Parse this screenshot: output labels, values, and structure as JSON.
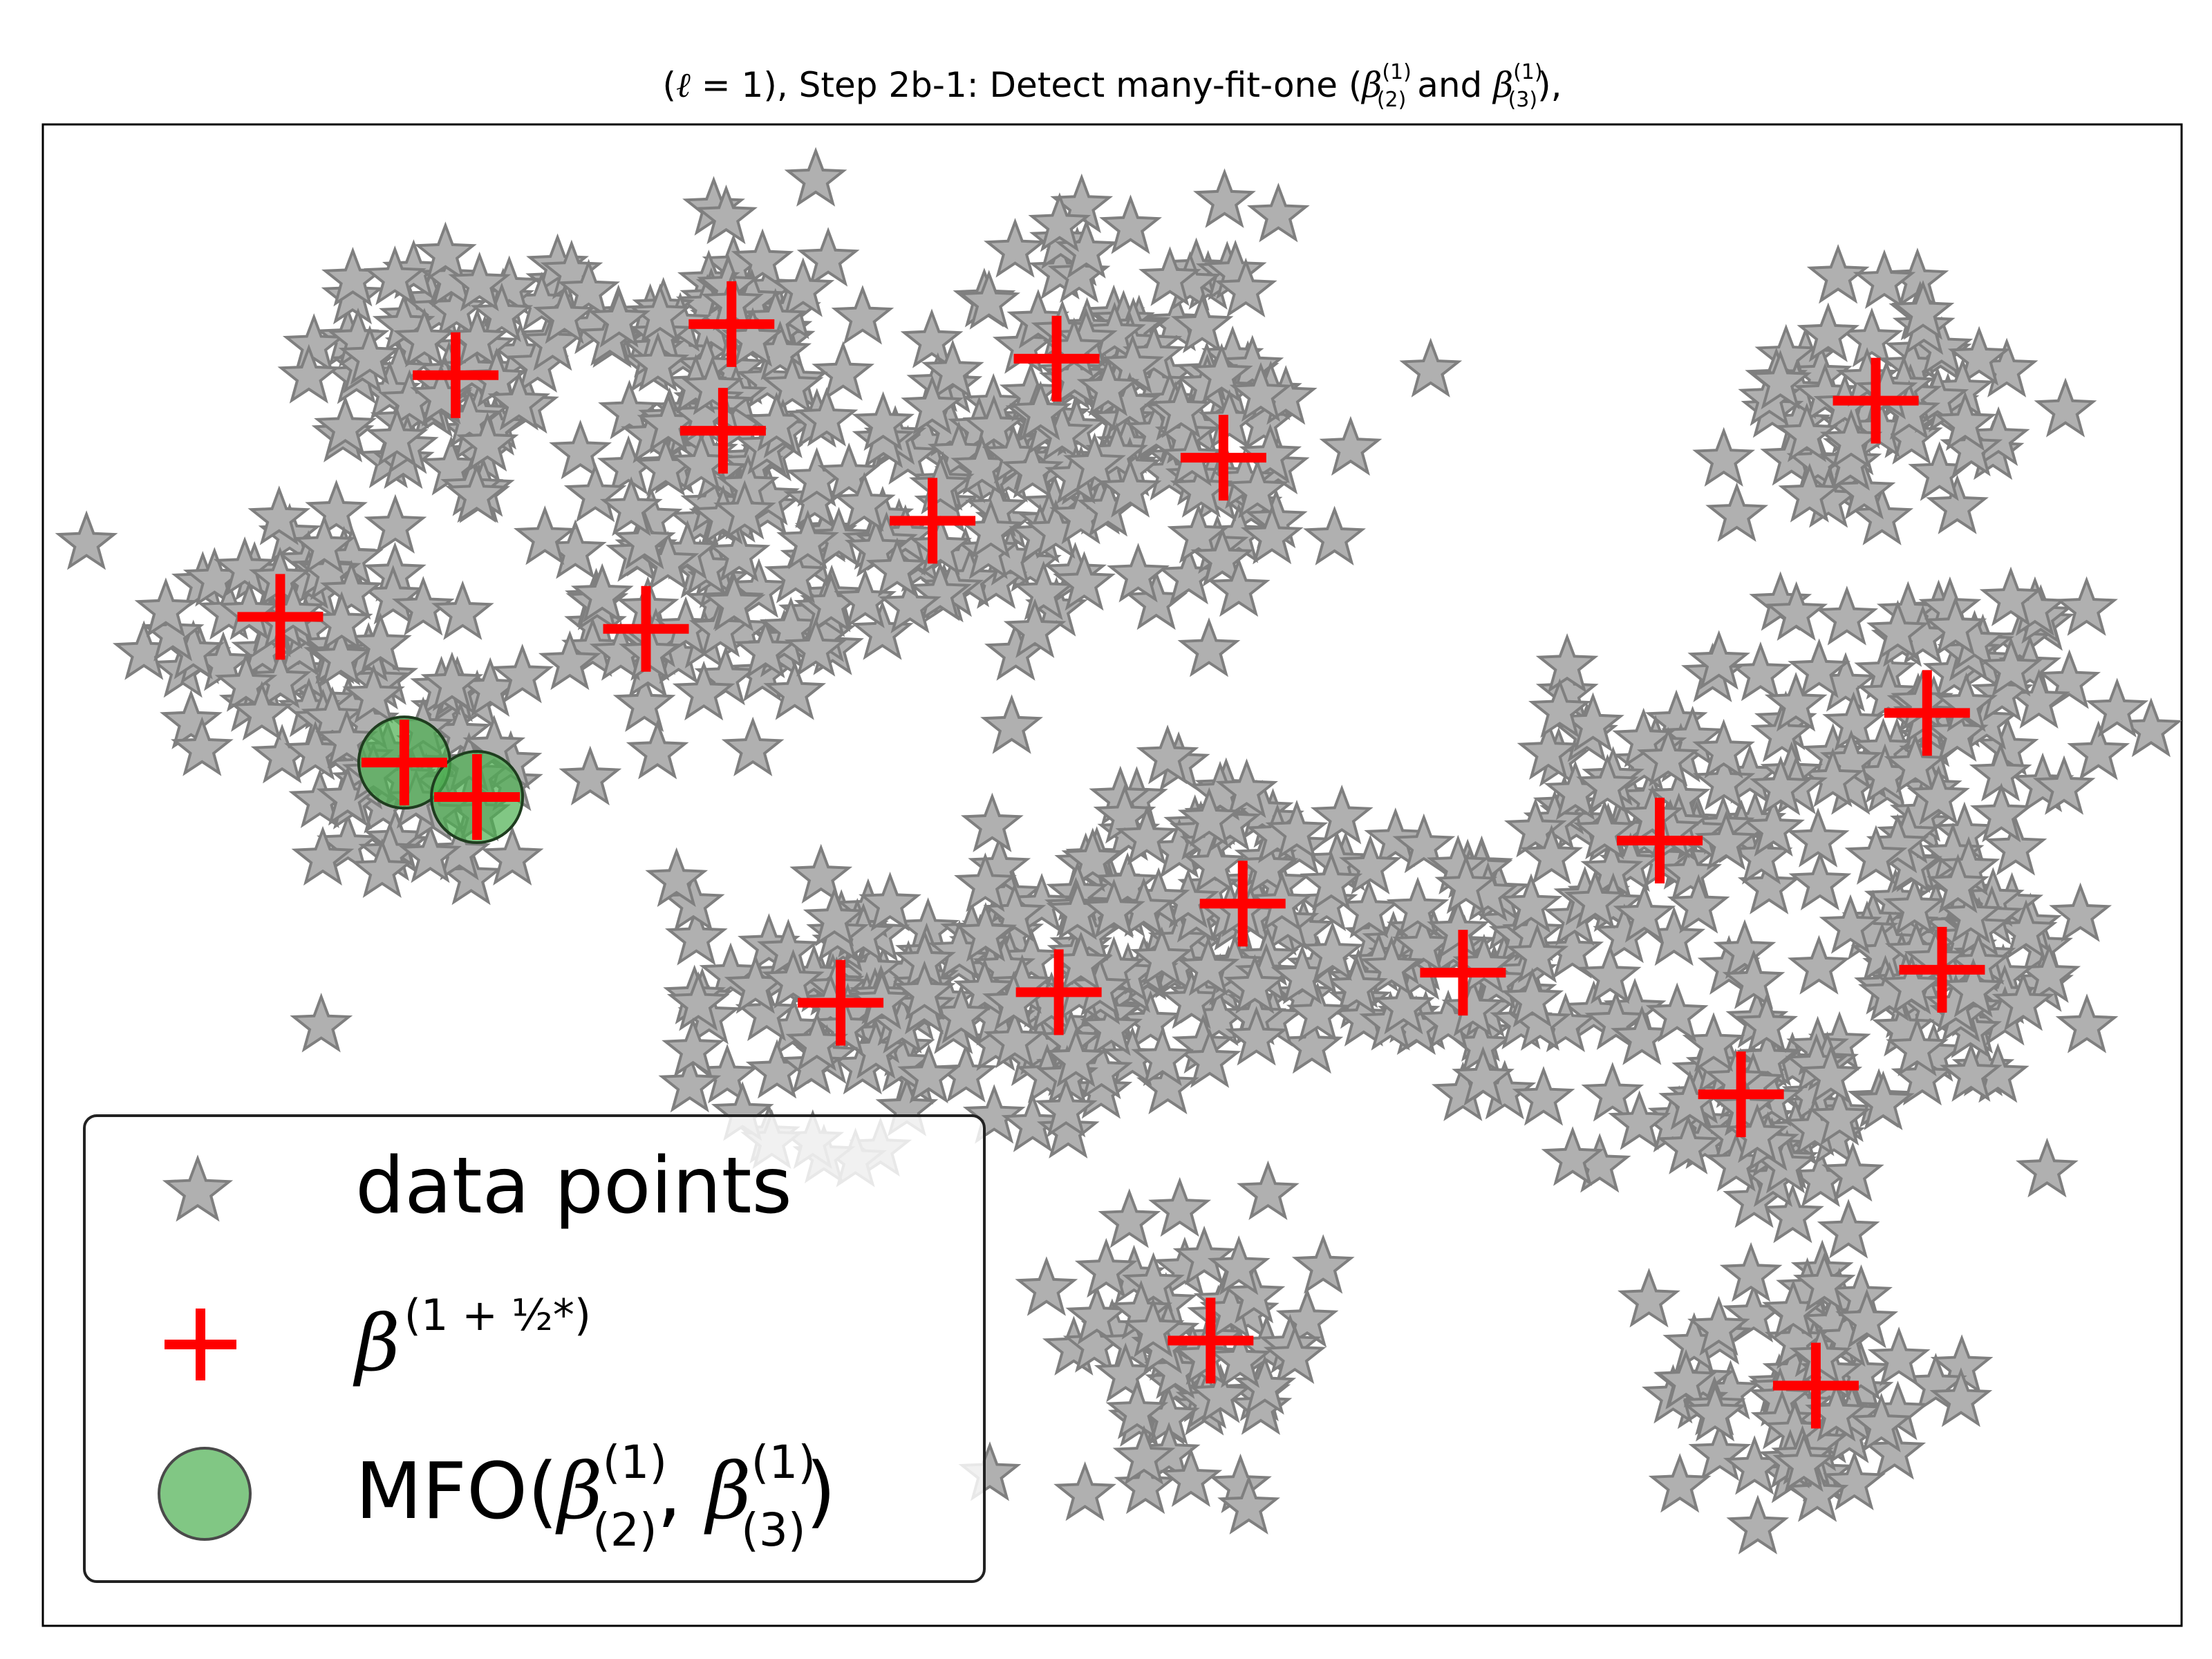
{
  "chart_data": {
    "type": "scatter",
    "title": {
      "prefix": "(",
      "ell": "ℓ",
      "eq_one": " = 1), Step 2b-1: Detect many-fit-one (",
      "beta": "β",
      "sup1": "(1)",
      "sub2": "(2)",
      "and": " and ",
      "sub3": "(3)",
      "suffix": "),"
    },
    "xlim": [
      0,
      1
    ],
    "ylim": [
      0,
      1
    ],
    "axes_ticks": "none",
    "grid": false,
    "legend": {
      "placement": "lower-left",
      "entries": [
        {
          "marker": "star",
          "label": "data points"
        },
        {
          "marker": "plus",
          "label_beta": "β",
          "label_sup": "(1 + ½*)"
        },
        {
          "marker": "circle",
          "label_prefix": "MFO(",
          "label_beta": "β",
          "sup": "(1)",
          "sub_a": "(2)",
          "sep": ", ",
          "sub_b": "(3)",
          "label_suffix": ")"
        }
      ]
    },
    "series": [
      {
        "marker": "star",
        "color": "#b0b0b0",
        "edge_color": "#7f7f7f",
        "clusters": [
          {
            "x": 0.193,
            "y": 0.833,
            "n": 70,
            "spread": 0.05
          },
          {
            "x": 0.113,
            "y": 0.667,
            "n": 65,
            "spread": 0.05
          },
          {
            "x": 0.177,
            "y": 0.567,
            "n": 55,
            "spread": 0.042
          },
          {
            "x": 0.31,
            "y": 0.67,
            "n": 65,
            "spread": 0.048
          },
          {
            "x": 0.32,
            "y": 0.87,
            "n": 45,
            "spread": 0.042
          },
          {
            "x": 0.315,
            "y": 0.8,
            "n": 45,
            "spread": 0.042
          },
          {
            "x": 0.42,
            "y": 0.735,
            "n": 70,
            "spread": 0.05
          },
          {
            "x": 0.5,
            "y": 0.845,
            "n": 70,
            "spread": 0.05
          },
          {
            "x": 0.545,
            "y": 0.775,
            "n": 60,
            "spread": 0.048
          },
          {
            "x": 0.855,
            "y": 0.815,
            "n": 60,
            "spread": 0.042
          },
          {
            "x": 0.885,
            "y": 0.605,
            "n": 75,
            "spread": 0.048
          },
          {
            "x": 0.89,
            "y": 0.44,
            "n": 70,
            "spread": 0.048
          },
          {
            "x": 0.75,
            "y": 0.525,
            "n": 75,
            "spread": 0.05
          },
          {
            "x": 0.8,
            "y": 0.355,
            "n": 70,
            "spread": 0.048
          },
          {
            "x": 0.825,
            "y": 0.16,
            "n": 65,
            "spread": 0.045
          },
          {
            "x": 0.65,
            "y": 0.44,
            "n": 70,
            "spread": 0.05
          },
          {
            "x": 0.55,
            "y": 0.47,
            "n": 85,
            "spread": 0.055
          },
          {
            "x": 0.465,
            "y": 0.43,
            "n": 75,
            "spread": 0.05
          },
          {
            "x": 0.37,
            "y": 0.42,
            "n": 70,
            "spread": 0.05
          },
          {
            "x": 0.54,
            "y": 0.185,
            "n": 60,
            "spread": 0.042
          }
        ]
      },
      {
        "marker": "plus",
        "color": "#ff0000",
        "points": [
          {
            "x": 0.193,
            "y": 0.833
          },
          {
            "x": 0.322,
            "y": 0.867
          },
          {
            "x": 0.318,
            "y": 0.796
          },
          {
            "x": 0.474,
            "y": 0.844
          },
          {
            "x": 0.552,
            "y": 0.778
          },
          {
            "x": 0.416,
            "y": 0.736
          },
          {
            "x": 0.111,
            "y": 0.672
          },
          {
            "x": 0.282,
            "y": 0.664
          },
          {
            "x": 0.169,
            "y": 0.575
          },
          {
            "x": 0.203,
            "y": 0.552
          },
          {
            "x": 0.857,
            "y": 0.816
          },
          {
            "x": 0.881,
            "y": 0.608
          },
          {
            "x": 0.756,
            "y": 0.523
          },
          {
            "x": 0.888,
            "y": 0.437
          },
          {
            "x": 0.794,
            "y": 0.354
          },
          {
            "x": 0.829,
            "y": 0.16
          },
          {
            "x": 0.561,
            "y": 0.481
          },
          {
            "x": 0.664,
            "y": 0.435
          },
          {
            "x": 0.475,
            "y": 0.422
          },
          {
            "x": 0.373,
            "y": 0.415
          },
          {
            "x": 0.546,
            "y": 0.19
          }
        ]
      },
      {
        "marker": "circle",
        "color": "#4caf50",
        "points": [
          {
            "x": 0.169,
            "y": 0.575
          },
          {
            "x": 0.203,
            "y": 0.552
          }
        ]
      }
    ]
  }
}
